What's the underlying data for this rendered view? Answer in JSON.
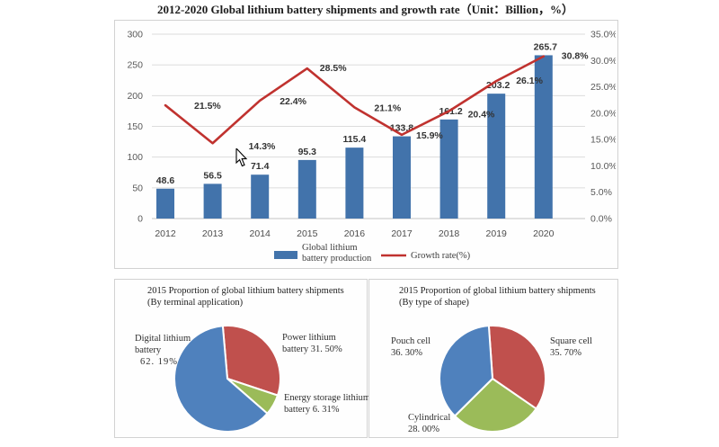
{
  "page": {
    "title": "2012-2020 Global lithium battery shipments and growth rate（Unit：Billion，%）"
  },
  "chart_data": [
    {
      "type": "bar",
      "title": "2012-2020 Global lithium battery shipments and growth rate（Unit：Billion，%）",
      "categories": [
        "2012",
        "2013",
        "2014",
        "2015",
        "2016",
        "2017",
        "2018",
        "2019",
        "2020"
      ],
      "series": [
        {
          "name": "Global lithium battery production",
          "chart": "bar",
          "axis": "left",
          "values": [
            48.6,
            56.5,
            71.4,
            95.3,
            115.4,
            133.8,
            161.2,
            203.2,
            265.7
          ],
          "labels": [
            "48.6",
            "56.5",
            "71.4",
            "95.3",
            "115.4",
            "133.8",
            "161.2",
            "203.2",
            "265.7"
          ],
          "color": "#4273ab"
        },
        {
          "name": "Growth rate(%)",
          "chart": "line",
          "axis": "right",
          "values": [
            21.5,
            14.3,
            22.4,
            28.5,
            21.1,
            15.9,
            20.4,
            26.1,
            30.8
          ],
          "labels": [
            "21.5%",
            "14.3%",
            "22.4%",
            "28.5%",
            "21.1%",
            "15.9%",
            "20.4%",
            "26.1%",
            "30.8%"
          ],
          "color": "#c0322f"
        }
      ],
      "left_axis": {
        "min": 0,
        "max": 300,
        "step": 50,
        "ticks": [
          "300",
          "250",
          "200",
          "150",
          "100",
          "50",
          "0"
        ]
      },
      "right_axis": {
        "min": 0,
        "max": 35,
        "step": 5,
        "ticks": [
          "35.0%",
          "30.0%",
          "25.0%",
          "20.0%",
          "15.0%",
          "10.0%",
          "5.0%",
          "0.0%"
        ]
      },
      "grid": true,
      "legend_position": "bottom",
      "legend": [
        {
          "swatch": "bar",
          "lines": [
            "Global lithium",
            "battery production"
          ]
        },
        {
          "swatch": "line",
          "lines": [
            "Growth rate(%)"
          ]
        }
      ]
    },
    {
      "type": "pie",
      "title_lines": [
        "2015 Proportion of global lithium battery shipments",
        "(By terminal application)"
      ],
      "start_angle": -5,
      "slices": [
        {
          "name": "Power lithium battery",
          "value": 31.5,
          "color": "#c0504d",
          "label_lines": [
            "Power lithium",
            "battery  31. 50%"
          ]
        },
        {
          "name": "Energy storage lithium battery",
          "value": 6.31,
          "color": "#9bbb59",
          "label_lines": [
            "Energy storage lithium",
            "battery  6. 31%"
          ]
        },
        {
          "name": "Digital lithium battery",
          "value": 62.19,
          "color": "#4f81bd",
          "label_lines": [
            "Digital lithium",
            "battery",
            "62. 19%"
          ]
        }
      ]
    },
    {
      "type": "pie",
      "title_lines": [
        "2015 Proportion of global lithium battery shipments",
        "(By type of shape)"
      ],
      "start_angle": -4,
      "slices": [
        {
          "name": "Square cell",
          "value": 35.7,
          "color": "#c0504d",
          "label_lines": [
            "Square cell",
            "35. 70%"
          ]
        },
        {
          "name": "Cylindrical",
          "value": 28.0,
          "color": "#9bbb59",
          "label_lines": [
            "Cylindrical",
            "28. 00%"
          ]
        },
        {
          "name": "Pouch cell",
          "value": 36.3,
          "color": "#4f81bd",
          "label_lines": [
            "Pouch cell",
            "36. 30%"
          ]
        }
      ]
    }
  ]
}
